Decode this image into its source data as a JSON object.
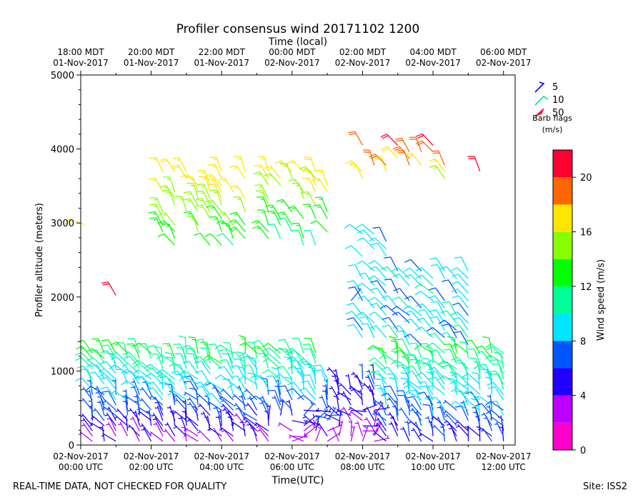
{
  "chart_data": {
    "type": "wind-barb-time-height",
    "title": "Profiler consensus wind 20171102 1200",
    "top_axis_title": "Time (local)",
    "xlabel": "Time(UTC)",
    "ylabel": "Profiler altitude (meters)",
    "xlim_hours_utc": [
      0,
      12.33
    ],
    "ylim": [
      0,
      5000
    ],
    "yticks": [
      0,
      1000,
      2000,
      3000,
      4000,
      5000
    ],
    "yticks_labels": [
      "0",
      "1000",
      "2000",
      "3000",
      "4000",
      "5000"
    ],
    "bottom_ticks": [
      {
        "hour": 0,
        "line1": "02-Nov-2017",
        "line2": "00:00 UTC"
      },
      {
        "hour": 2,
        "line1": "02-Nov-2017",
        "line2": "02:00 UTC"
      },
      {
        "hour": 4,
        "line1": "02-Nov-2017",
        "line2": "04:00 UTC"
      },
      {
        "hour": 6,
        "line1": "02-Nov-2017",
        "line2": "06:00 UTC"
      },
      {
        "hour": 8,
        "line1": "02-Nov-2017",
        "line2": "08:00 UTC"
      },
      {
        "hour": 10,
        "line1": "02-Nov-2017",
        "line2": "10:00 UTC"
      },
      {
        "hour": 12,
        "line1": "02-Nov-2017",
        "line2": "12:00 UTC"
      }
    ],
    "top_ticks": [
      {
        "hour": 0,
        "line1": "18:00 MDT",
        "line2": "01-Nov-2017"
      },
      {
        "hour": 2,
        "line1": "20:00 MDT",
        "line2": "01-Nov-2017"
      },
      {
        "hour": 4,
        "line1": "22:00 MDT",
        "line2": "01-Nov-2017"
      },
      {
        "hour": 6,
        "line1": "00:00 MDT",
        "line2": "02-Nov-2017"
      },
      {
        "hour": 8,
        "line1": "02:00 MDT",
        "line2": "02-Nov-2017"
      },
      {
        "hour": 10,
        "line1": "04:00 MDT",
        "line2": "02-Nov-2017"
      },
      {
        "hour": 12,
        "line1": "06:00 MDT",
        "line2": "02-Nov-2017"
      }
    ],
    "barb_legend": {
      "entries": [
        {
          "label": "5",
          "color": "#0000ff"
        },
        {
          "label": "10",
          "color": "#00e68a"
        },
        {
          "label": "50",
          "color": "#ff0033"
        }
      ],
      "title_line1": "Barb flags",
      "title_line2": "(m/s)"
    },
    "colorbar": {
      "label": "Wind speed (m/s)",
      "bounds": [
        0,
        22
      ],
      "ticks": [
        0,
        4,
        8,
        12,
        16,
        20
      ],
      "tick_labels": [
        "0",
        "4",
        "8",
        "12",
        "16",
        "20"
      ],
      "bins": [
        {
          "from": 0,
          "to": 2,
          "color": "#ff00cc"
        },
        {
          "from": 2,
          "to": 4,
          "color": "#bb00ff"
        },
        {
          "from": 4,
          "to": 6,
          "color": "#2200ff"
        },
        {
          "from": 6,
          "to": 8,
          "color": "#0055ff"
        },
        {
          "from": 8,
          "to": 10,
          "color": "#00e5ff"
        },
        {
          "from": 10,
          "to": 12,
          "color": "#00ff99"
        },
        {
          "from": 12,
          "to": 14,
          "color": "#00ff00"
        },
        {
          "from": 14,
          "to": 16,
          "color": "#88ff00"
        },
        {
          "from": 16,
          "to": 18,
          "color": "#ffe600"
        },
        {
          "from": 18,
          "to": 20,
          "color": "#ff6600"
        },
        {
          "from": 20,
          "to": 22,
          "color": "#ff0033"
        }
      ]
    },
    "barb_sample_times_utc": [
      0,
      0.33,
      0.67,
      1.0,
      1.33,
      1.67,
      2.0,
      2.33,
      2.67,
      3.0,
      3.33,
      3.67,
      4.0,
      4.33,
      4.67,
      5.0,
      5.33,
      5.67,
      6.0,
      6.33,
      6.67,
      7.0,
      7.33,
      7.67,
      8.0,
      8.33,
      8.67,
      9.0,
      9.33,
      9.67,
      10.0,
      10.33,
      10.67,
      11.0,
      11.33,
      11.67,
      12.0
    ]
  },
  "footer": {
    "left_note": "REAL-TIME DATA, NOT CHECKED FOR QUALITY",
    "site": "Site: ISS2"
  }
}
